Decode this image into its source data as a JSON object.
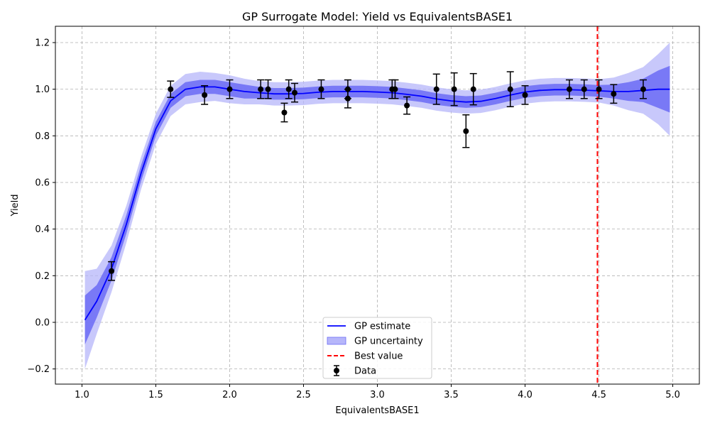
{
  "chart_data": {
    "type": "line",
    "title": "GP Surrogate Model: Yield vs EquivalentsBASE1",
    "xlabel": "EquivalentsBASE1",
    "ylabel": "Yield",
    "xlim": [
      0.82,
      5.18
    ],
    "ylim": [
      -0.265,
      1.27
    ],
    "xticks": [
      1.0,
      1.5,
      2.0,
      2.5,
      3.0,
      3.5,
      4.0,
      4.5,
      5.0
    ],
    "xtick_labels": [
      "1.0",
      "1.5",
      "2.0",
      "2.5",
      "3.0",
      "3.5",
      "4.0",
      "4.5",
      "5.0"
    ],
    "yticks": [
      -0.2,
      0.0,
      0.2,
      0.4,
      0.6,
      0.8,
      1.0,
      1.2
    ],
    "ytick_labels": [
      "−0.2",
      "0.0",
      "0.2",
      "0.4",
      "0.6",
      "0.8",
      "1.0",
      "1.2"
    ],
    "grid": true,
    "legend_position": "bottom-center",
    "colors": {
      "gp_line": "#0000ff",
      "inner_band": "#6b6bf5",
      "outer_band": "#b6b6fa",
      "best": "#ff0000",
      "data": "#000000"
    },
    "legend": [
      {
        "label": "GP estimate",
        "kind": "line"
      },
      {
        "label": "GP uncertainty",
        "kind": "band"
      },
      {
        "label": "Best value",
        "kind": "dashed"
      },
      {
        "label": "Data",
        "kind": "errorbar"
      }
    ],
    "gp_estimate": {
      "x": [
        1.02,
        1.1,
        1.2,
        1.3,
        1.4,
        1.5,
        1.6,
        1.7,
        1.8,
        1.9,
        2.0,
        2.1,
        2.2,
        2.3,
        2.4,
        2.5,
        2.6,
        2.7,
        2.8,
        2.9,
        3.0,
        3.1,
        3.2,
        3.3,
        3.4,
        3.5,
        3.6,
        3.7,
        3.8,
        3.9,
        4.0,
        4.1,
        4.2,
        4.3,
        4.4,
        4.5,
        4.6,
        4.7,
        4.8,
        4.9,
        4.98
      ],
      "y": [
        0.01,
        0.09,
        0.23,
        0.42,
        0.64,
        0.83,
        0.95,
        1.0,
        1.01,
        1.01,
        1.0,
        0.99,
        0.985,
        0.98,
        0.98,
        0.982,
        0.987,
        0.99,
        0.99,
        0.99,
        0.988,
        0.985,
        0.978,
        0.97,
        0.958,
        0.95,
        0.945,
        0.948,
        0.96,
        0.975,
        0.988,
        0.995,
        0.998,
        0.998,
        0.996,
        0.993,
        0.99,
        0.99,
        0.995,
        1.0,
        1.0
      ],
      "inner_half_width": [
        0.105,
        0.07,
        0.05,
        0.04,
        0.035,
        0.03,
        0.03,
        0.03,
        0.03,
        0.03,
        0.03,
        0.03,
        0.025,
        0.025,
        0.025,
        0.025,
        0.025,
        0.025,
        0.025,
        0.025,
        0.025,
        0.025,
        0.025,
        0.025,
        0.025,
        0.025,
        0.025,
        0.025,
        0.025,
        0.025,
        0.025,
        0.025,
        0.025,
        0.025,
        0.025,
        0.025,
        0.03,
        0.04,
        0.05,
        0.08,
        0.1
      ],
      "outer_half_width": [
        0.21,
        0.14,
        0.1,
        0.08,
        0.07,
        0.065,
        0.065,
        0.065,
        0.065,
        0.06,
        0.06,
        0.055,
        0.05,
        0.05,
        0.05,
        0.05,
        0.05,
        0.05,
        0.05,
        0.05,
        0.05,
        0.05,
        0.05,
        0.05,
        0.05,
        0.05,
        0.05,
        0.05,
        0.05,
        0.05,
        0.05,
        0.05,
        0.05,
        0.05,
        0.05,
        0.05,
        0.06,
        0.08,
        0.1,
        0.15,
        0.2
      ]
    },
    "best_value_x": 4.49,
    "data_points": [
      {
        "x": 1.2,
        "y": 0.22,
        "err": 0.04
      },
      {
        "x": 1.6,
        "y": 1.0,
        "err": 0.035
      },
      {
        "x": 1.83,
        "y": 0.975,
        "err": 0.04
      },
      {
        "x": 2.0,
        "y": 1.0,
        "err": 0.04
      },
      {
        "x": 2.21,
        "y": 1.0,
        "err": 0.04
      },
      {
        "x": 2.26,
        "y": 1.0,
        "err": 0.04
      },
      {
        "x": 2.37,
        "y": 0.9,
        "err": 0.04
      },
      {
        "x": 2.4,
        "y": 1.0,
        "err": 0.04
      },
      {
        "x": 2.44,
        "y": 0.985,
        "err": 0.04
      },
      {
        "x": 2.62,
        "y": 1.0,
        "err": 0.04
      },
      {
        "x": 2.8,
        "y": 1.0,
        "err": 0.04
      },
      {
        "x": 2.8,
        "y": 0.96,
        "err": 0.04
      },
      {
        "x": 3.1,
        "y": 1.0,
        "err": 0.04
      },
      {
        "x": 3.12,
        "y": 1.0,
        "err": 0.04
      },
      {
        "x": 3.2,
        "y": 0.93,
        "err": 0.037
      },
      {
        "x": 3.4,
        "y": 1.0,
        "err": 0.065
      },
      {
        "x": 3.52,
        "y": 1.0,
        "err": 0.07
      },
      {
        "x": 3.6,
        "y": 0.82,
        "err": 0.07
      },
      {
        "x": 3.65,
        "y": 1.0,
        "err": 0.067
      },
      {
        "x": 3.9,
        "y": 1.0,
        "err": 0.075
      },
      {
        "x": 4.0,
        "y": 0.975,
        "err": 0.04
      },
      {
        "x": 4.3,
        "y": 1.0,
        "err": 0.04
      },
      {
        "x": 4.4,
        "y": 1.0,
        "err": 0.04
      },
      {
        "x": 4.5,
        "y": 1.0,
        "err": 0.04
      },
      {
        "x": 4.6,
        "y": 0.98,
        "err": 0.04
      },
      {
        "x": 4.8,
        "y": 1.0,
        "err": 0.04
      }
    ]
  }
}
